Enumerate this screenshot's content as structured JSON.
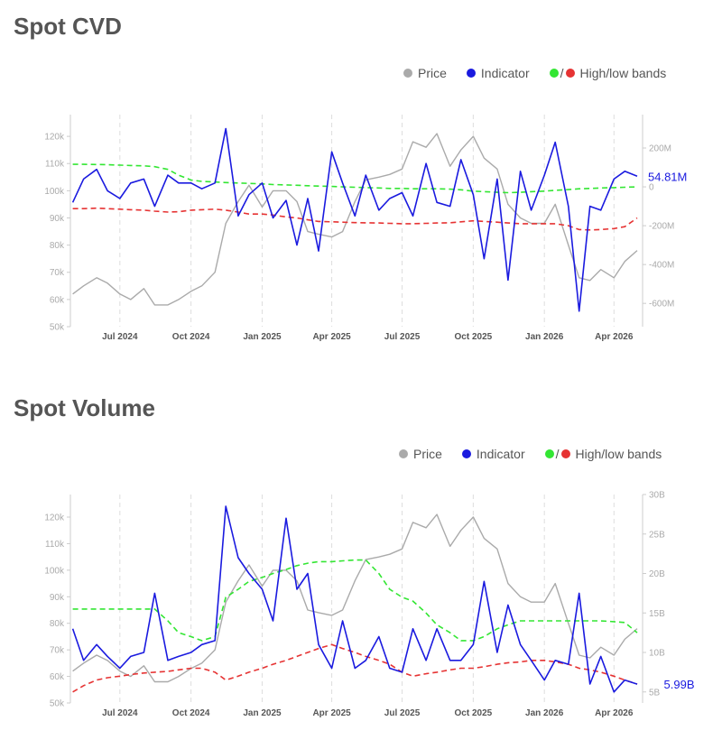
{
  "legend": {
    "price": "Price",
    "indicator": "Indicator",
    "slash": "/",
    "bands": "High/low bands"
  },
  "colors": {
    "price": "#aaaaaa",
    "indicator": "#1a1adf",
    "high_band": "#33e633",
    "low_band": "#e63333"
  },
  "chart_data": [
    {
      "type": "line",
      "title": "Spot CVD",
      "x_ticks": [
        "Jul 2024",
        "Oct 2024",
        "Jan 2025",
        "Apr 2025",
        "Jul 2025",
        "Oct 2025",
        "Jan 2026",
        "Apr 2026"
      ],
      "x_tick_dates": [
        "2024-07-01",
        "2024-10-01",
        "2025-01-01",
        "2025-04-01",
        "2025-07-01",
        "2025-10-01",
        "2026-01-01",
        "2026-04-01"
      ],
      "xlim": [
        "2024-04-28",
        "2026-05-08"
      ],
      "left_axis": {
        "ylim": [
          50000,
          128000
        ],
        "ticks": [
          50000,
          60000,
          70000,
          80000,
          90000,
          100000,
          110000,
          120000
        ],
        "tick_labels": [
          "50k",
          "60k",
          "70k",
          "80k",
          "90k",
          "100k",
          "110k",
          "120k"
        ]
      },
      "right_axis": {
        "ylim": [
          -720,
          372
        ],
        "unit": "M",
        "ticks": [
          -600,
          -400,
          -200,
          0,
          200
        ],
        "tick_labels": [
          "-600M",
          "-400M",
          "-200M",
          "0",
          "200M"
        ]
      },
      "last_value_label": "54.81M",
      "grid": "vertical dashed",
      "x": [
        "2024-05-01",
        "2024-05-15",
        "2024-06-01",
        "2024-06-15",
        "2024-07-01",
        "2024-07-15",
        "2024-08-01",
        "2024-08-15",
        "2024-09-01",
        "2024-09-15",
        "2024-10-01",
        "2024-10-15",
        "2024-11-01",
        "2024-11-15",
        "2024-12-01",
        "2024-12-15",
        "2025-01-01",
        "2025-01-15",
        "2025-02-01",
        "2025-02-15",
        "2025-03-01",
        "2025-03-15",
        "2025-04-01",
        "2025-04-15",
        "2025-05-01",
        "2025-05-15",
        "2025-06-01",
        "2025-06-15",
        "2025-07-01",
        "2025-07-15",
        "2025-08-01",
        "2025-08-15",
        "2025-09-01",
        "2025-09-15",
        "2025-10-01",
        "2025-10-15",
        "2025-11-01",
        "2025-11-15",
        "2025-12-01",
        "2025-12-15",
        "2026-01-01",
        "2026-01-15",
        "2026-02-01",
        "2026-02-15",
        "2026-03-01",
        "2026-03-15",
        "2026-04-01",
        "2026-04-15",
        "2026-05-01"
      ],
      "series": [
        {
          "name": "Price",
          "axis": "left",
          "style": "price",
          "values": [
            62000,
            65000,
            68000,
            66000,
            62000,
            60000,
            64000,
            58000,
            58000,
            60000,
            63000,
            65000,
            70000,
            88000,
            96000,
            102000,
            94000,
            100000,
            100000,
            96000,
            85000,
            84000,
            83000,
            85000,
            96000,
            104000,
            105000,
            106000,
            108000,
            118000,
            116000,
            121000,
            109000,
            115000,
            120000,
            112000,
            108000,
            95000,
            90000,
            88000,
            88000,
            95000,
            80000,
            68000,
            67000,
            71000,
            68000,
            74000,
            78000
          ]
        },
        {
          "name": "Indicator",
          "axis": "right",
          "style": "indicator",
          "values": [
            -80,
            40,
            90,
            -20,
            -60,
            20,
            40,
            -100,
            60,
            20,
            20,
            -10,
            20,
            300,
            -150,
            -40,
            20,
            -160,
            -70,
            -300,
            -60,
            -330,
            180,
            20,
            -150,
            60,
            -120,
            -60,
            -30,
            -150,
            120,
            -80,
            -100,
            140,
            -40,
            -370,
            40,
            -480,
            80,
            -120,
            60,
            230,
            -100,
            -640,
            -100,
            -120,
            40,
            80,
            54.81
          ]
        },
        {
          "name": "High band",
          "axis": "right",
          "style": "high",
          "values": [
            116,
            116,
            115,
            114,
            112,
            110,
            108,
            104,
            90,
            60,
            35,
            28,
            25,
            22,
            20,
            18,
            15,
            12,
            10,
            8,
            6,
            4,
            2,
            0,
            -2,
            -4,
            -6,
            -8,
            -8,
            -10,
            -10,
            -10,
            -12,
            -15,
            -22,
            -25,
            -28,
            -30,
            -28,
            -25,
            -22,
            -18,
            -14,
            -10,
            -8,
            -6,
            -4,
            -2,
            0
          ]
        },
        {
          "name": "Low band",
          "axis": "right",
          "style": "low",
          "values": [
            -112,
            -112,
            -110,
            -112,
            -115,
            -118,
            -120,
            -125,
            -130,
            -128,
            -120,
            -118,
            -115,
            -120,
            -130,
            -140,
            -140,
            -145,
            -155,
            -160,
            -170,
            -178,
            -180,
            -182,
            -184,
            -185,
            -186,
            -188,
            -190,
            -190,
            -188,
            -186,
            -185,
            -180,
            -175,
            -178,
            -182,
            -186,
            -190,
            -190,
            -190,
            -190,
            -200,
            -220,
            -222,
            -220,
            -215,
            -205,
            -160
          ]
        }
      ]
    },
    {
      "type": "line",
      "title": "Spot Volume",
      "x_ticks": [
        "Jul 2024",
        "Oct 2024",
        "Jan 2025",
        "Apr 2025",
        "Jul 2025",
        "Oct 2025",
        "Jan 2026",
        "Apr 2026"
      ],
      "x_tick_dates": [
        "2024-07-01",
        "2024-10-01",
        "2025-01-01",
        "2025-04-01",
        "2025-07-01",
        "2025-10-01",
        "2026-01-01",
        "2026-04-01"
      ],
      "xlim": [
        "2024-04-28",
        "2026-05-08"
      ],
      "left_axis": {
        "ylim": [
          50000,
          128500
        ],
        "ticks": [
          50000,
          60000,
          70000,
          80000,
          90000,
          100000,
          110000,
          120000
        ],
        "tick_labels": [
          "50k",
          "60k",
          "70k",
          "80k",
          "90k",
          "100k",
          "110k",
          "120k"
        ]
      },
      "right_axis": {
        "ylim": [
          3.6,
          30
        ],
        "unit": "B",
        "ticks": [
          5,
          10,
          15,
          20,
          25,
          30
        ],
        "tick_labels": [
          "5B",
          "10B",
          "15B",
          "20B",
          "25B",
          "30B"
        ]
      },
      "last_value_label": "5.99B",
      "grid": "vertical dashed",
      "x": [
        "2024-05-01",
        "2024-05-15",
        "2024-06-01",
        "2024-06-15",
        "2024-07-01",
        "2024-07-15",
        "2024-08-01",
        "2024-08-15",
        "2024-09-01",
        "2024-09-15",
        "2024-10-01",
        "2024-10-15",
        "2024-11-01",
        "2024-11-15",
        "2024-12-01",
        "2024-12-15",
        "2025-01-01",
        "2025-01-15",
        "2025-02-01",
        "2025-02-15",
        "2025-03-01",
        "2025-03-15",
        "2025-04-01",
        "2025-04-15",
        "2025-05-01",
        "2025-05-15",
        "2025-06-01",
        "2025-06-15",
        "2025-07-01",
        "2025-07-15",
        "2025-08-01",
        "2025-08-15",
        "2025-09-01",
        "2025-09-15",
        "2025-10-01",
        "2025-10-15",
        "2025-11-01",
        "2025-11-15",
        "2025-12-01",
        "2025-12-15",
        "2026-01-01",
        "2026-01-15",
        "2026-02-01",
        "2026-02-15",
        "2026-03-01",
        "2026-03-15",
        "2026-04-01",
        "2026-04-15",
        "2026-05-01"
      ],
      "series": [
        {
          "name": "Price",
          "axis": "left",
          "style": "price",
          "values": [
            62000,
            65000,
            68000,
            66000,
            62000,
            60000,
            64000,
            58000,
            58000,
            60000,
            63000,
            65000,
            70000,
            88000,
            96000,
            102000,
            94000,
            100000,
            100000,
            96000,
            85000,
            84000,
            83000,
            85000,
            96000,
            104000,
            105000,
            106000,
            108000,
            118000,
            116000,
            121000,
            109000,
            115000,
            120000,
            112000,
            108000,
            95000,
            90000,
            88000,
            88000,
            95000,
            80000,
            68000,
            67000,
            71000,
            68000,
            74000,
            78000
          ]
        },
        {
          "name": "Indicator",
          "axis": "right",
          "style": "indicator",
          "values": [
            13,
            9,
            11,
            9.5,
            8,
            9.5,
            10,
            17.5,
            9,
            9.5,
            10,
            11,
            11.5,
            28.5,
            22,
            20,
            18,
            14,
            27,
            18,
            20,
            11,
            8,
            14,
            8,
            9,
            12,
            8,
            7.5,
            13,
            9,
            13,
            9,
            9,
            11,
            19,
            10,
            16,
            11,
            9,
            6.5,
            9,
            8.5,
            17.5,
            6,
            9.5,
            5,
            6.5,
            5.99
          ]
        },
        {
          "name": "High band",
          "axis": "right",
          "style": "high",
          "values": [
            15.5,
            15.5,
            15.5,
            15.5,
            15.5,
            15.5,
            15.5,
            15.5,
            14,
            12.5,
            12,
            11.5,
            12,
            17,
            18,
            19,
            19.5,
            20,
            20.5,
            21,
            21.3,
            21.5,
            21.5,
            21.6,
            21.7,
            21.7,
            20,
            18,
            17,
            16.5,
            15,
            13.5,
            12.5,
            11.5,
            11.5,
            12,
            13,
            13.5,
            14,
            14,
            14,
            14,
            14,
            14,
            14,
            14,
            13.9,
            13.8,
            12.5
          ]
        },
        {
          "name": "Low band",
          "axis": "right",
          "style": "low",
          "values": [
            5,
            5.8,
            6.5,
            6.8,
            7,
            7.2,
            7.4,
            7.5,
            7.6,
            7.8,
            8,
            8,
            7.5,
            6.5,
            7,
            7.5,
            8,
            8.5,
            9,
            9.5,
            10,
            10.5,
            11,
            10.5,
            10,
            9.5,
            9,
            8.5,
            7.5,
            7,
            7.3,
            7.5,
            7.8,
            8,
            8,
            8.2,
            8.5,
            8.7,
            8.8,
            9,
            9,
            8.8,
            8.5,
            8,
            7.8,
            7.5,
            7,
            6.5,
            6
          ]
        }
      ]
    }
  ]
}
